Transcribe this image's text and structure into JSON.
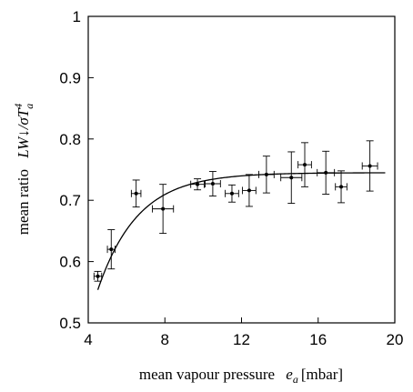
{
  "chart_data": {
    "type": "scatter",
    "title": "",
    "xlabel": {
      "text": "mean vapour pressure",
      "symbol": "e",
      "subscript": "a",
      "unit": "[mbar]"
    },
    "ylabel": {
      "text": "mean ratio",
      "symbol": "LW↓/σT",
      "subscript": "a",
      "superscript": "4"
    },
    "xlim": [
      4,
      20
    ],
    "ylim": [
      0.5,
      1.0
    ],
    "x_ticks": [
      4,
      8,
      12,
      16,
      20
    ],
    "y_ticks": [
      0.5,
      0.6,
      0.7,
      0.8,
      0.9,
      1.0
    ],
    "x_tick_labels": [
      "4",
      "8",
      "12",
      "16",
      "20"
    ],
    "y_tick_labels": [
      "0.5",
      "0.6",
      "0.7",
      "0.8",
      "0.9",
      "1"
    ],
    "grid": false,
    "points": [
      {
        "x": 4.5,
        "y": 0.576,
        "xerr": 0.2,
        "yerr": 0.008
      },
      {
        "x": 5.2,
        "y": 0.62,
        "xerr": 0.2,
        "yerr": 0.032
      },
      {
        "x": 6.5,
        "y": 0.711,
        "xerr": 0.25,
        "yerr": 0.022
      },
      {
        "x": 7.9,
        "y": 0.686,
        "xerr": 0.55,
        "yerr": 0.04
      },
      {
        "x": 9.7,
        "y": 0.726,
        "xerr": 0.35,
        "yerr": 0.009
      },
      {
        "x": 10.5,
        "y": 0.727,
        "xerr": 0.4,
        "yerr": 0.02
      },
      {
        "x": 11.5,
        "y": 0.711,
        "xerr": 0.35,
        "yerr": 0.014
      },
      {
        "x": 12.4,
        "y": 0.716,
        "xerr": 0.35,
        "yerr": 0.026
      },
      {
        "x": 13.3,
        "y": 0.742,
        "xerr": 0.4,
        "yerr": 0.03
      },
      {
        "x": 14.6,
        "y": 0.737,
        "xerr": 0.55,
        "yerr": 0.042
      },
      {
        "x": 15.3,
        "y": 0.758,
        "xerr": 0.35,
        "yerr": 0.036
      },
      {
        "x": 16.4,
        "y": 0.745,
        "xerr": 0.45,
        "yerr": 0.035
      },
      {
        "x": 17.2,
        "y": 0.722,
        "xerr": 0.3,
        "yerr": 0.026
      },
      {
        "x": 18.7,
        "y": 0.756,
        "xerr": 0.4,
        "yerr": 0.041
      }
    ],
    "fit_curve": {
      "type": "line",
      "x_range": [
        4.5,
        19.5
      ],
      "asymptote": 0.745,
      "amplitude": 0.243,
      "decay_rate": 0.48,
      "x0": 4
    }
  }
}
